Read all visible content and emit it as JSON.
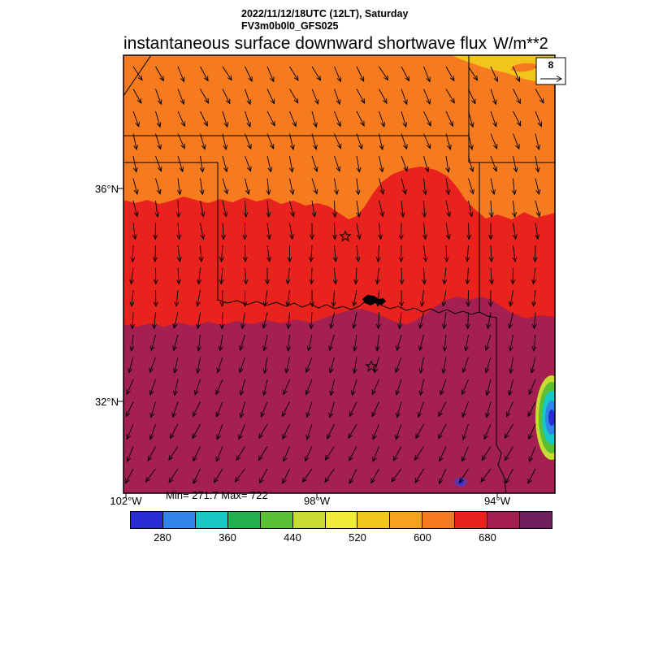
{
  "header": {
    "datetime": "2022/11/12/18UTC (12LT), Saturday",
    "model": "FV3m0b0l0_GFS025",
    "title": "instantaneous surface downward shortwave flux",
    "units": "W/m**2"
  },
  "stats": {
    "minmax": "Min= 271.7 Max= 722"
  },
  "axes": {
    "lat": [
      "36°N",
      "32°N"
    ],
    "lon": [
      "102°W",
      "98°W",
      "94°W"
    ]
  },
  "ref_box": {
    "value": "8"
  },
  "colorbar": {
    "labels": [
      "280",
      "360",
      "440",
      "520",
      "600",
      "680"
    ],
    "colors": [
      "#2b2bd4",
      "#2f86e8",
      "#18c8c4",
      "#22b14c",
      "#5bbf33",
      "#c8dc30",
      "#f0ea38",
      "#f2c51d",
      "#f5a31e",
      "#f57b1e",
      "#e8221c",
      "#a32050",
      "#6d1f5e"
    ]
  },
  "colors": {
    "background": "#ffffff",
    "border": "#000000",
    "band_north": "#f57b1e",
    "band_central": "#e8221c",
    "band_south": "#a32050",
    "ne_patch": "#f2c51d",
    "ne_patch_streak": "#f57b1e",
    "spot_ring1": "#c8dc30",
    "spot_ring2": "#5bbf33",
    "spot_ring3": "#18c8c4",
    "spot_ring4": "#2f86e8",
    "spot_core": "#2b2bd4",
    "small_spot": "#6a31a0",
    "small_spot_core": "#2b2bd4"
  },
  "wind": {
    "spacing": 27.5,
    "length": 20,
    "angle_top_deg": 28,
    "angle_bottom_deg": -34,
    "jitter_deg": 6
  },
  "chart_data": {
    "type": "heatmap",
    "title": "instantaneous surface downward shortwave flux",
    "subtitle_lines": [
      "2022/11/12/18UTC (12LT), Saturday",
      "FV3m0b0l0_GFS025"
    ],
    "units": "W/m**2",
    "stat_min": 271.7,
    "stat_max": 722,
    "x_axis": {
      "ticks": [
        "102°W",
        "98°W",
        "94°W"
      ]
    },
    "y_axis": {
      "ticks": [
        "36°N",
        "32°N"
      ]
    },
    "colorbar_levels": [
      240,
      280,
      320,
      360,
      400,
      440,
      480,
      520,
      560,
      600,
      640,
      680,
      720,
      760
    ],
    "colorbar_tick_labels": [
      280,
      360,
      440,
      520,
      600,
      680
    ],
    "colorbar_colors": [
      "#2b2bd4",
      "#2f86e8",
      "#18c8c4",
      "#22b14c",
      "#5bbf33",
      "#c8dc30",
      "#f0ea38",
      "#f2c51d",
      "#f5a31e",
      "#f57b1e",
      "#e8221c",
      "#a32050",
      "#6d1f5e"
    ],
    "wind_vectors": {
      "reference_value": 8,
      "description": "uniform northerly flow; arrows tilt down-right in the north, straight down mid-map, down-left in the south"
    },
    "regions": [
      {
        "name": "north band (Kansas/OK panhandle)",
        "approx_value_range": [
          600,
          640
        ],
        "color": "#f57b1e"
      },
      {
        "name": "central band (Oklahoma)",
        "approx_value_range": [
          640,
          680
        ],
        "color": "#e8221c"
      },
      {
        "name": "south band (Texas)",
        "approx_value_range": [
          680,
          722
        ],
        "color": "#a32050"
      },
      {
        "name": "northeast corner patch",
        "approx_value_range": [
          520,
          600
        ],
        "color": "#f2c51d"
      },
      {
        "name": "southeast low-flux spot",
        "approx_value_range": [
          240,
          440
        ],
        "color": "#2b2bd4"
      }
    ],
    "map_features": [
      "state borders",
      "Red River",
      "lake on Red River",
      "two city stars"
    ]
  }
}
